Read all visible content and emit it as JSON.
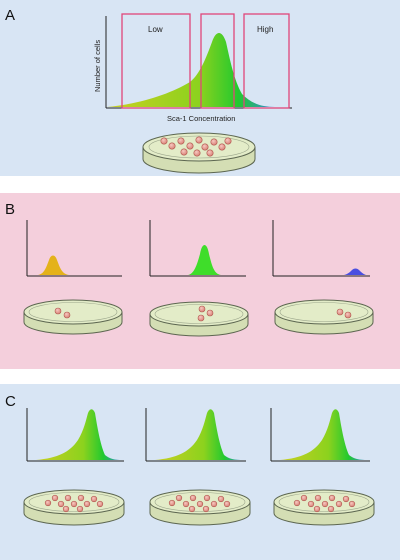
{
  "colors": {
    "panel_a_bg": "#d8e5f4",
    "panel_b_bg": "#f4cfdc",
    "panel_c_bg": "#d8e5f4",
    "gate_stroke": "#e0457a",
    "dish_fill": "#dfe8c4",
    "dish_stroke": "#5c6650",
    "cell_fill": "#e39a90",
    "cell_stroke": "#b0574f",
    "yellow": "#e4b21a",
    "green": "#3fdd2a",
    "blue": "#4a4fe0",
    "yellow_green": "#c8d21a",
    "teal": "#2ea0a0"
  },
  "panels": {
    "a": {
      "letter": "A",
      "ylabel": "Number of cells",
      "xlabel": "Sca-1 Concentration",
      "gates": [
        {
          "label": "Low"
        },
        {
          "label": ""
        },
        {
          "label": "High"
        }
      ]
    },
    "b": {
      "letter": "B"
    },
    "c": {
      "letter": "C"
    }
  }
}
